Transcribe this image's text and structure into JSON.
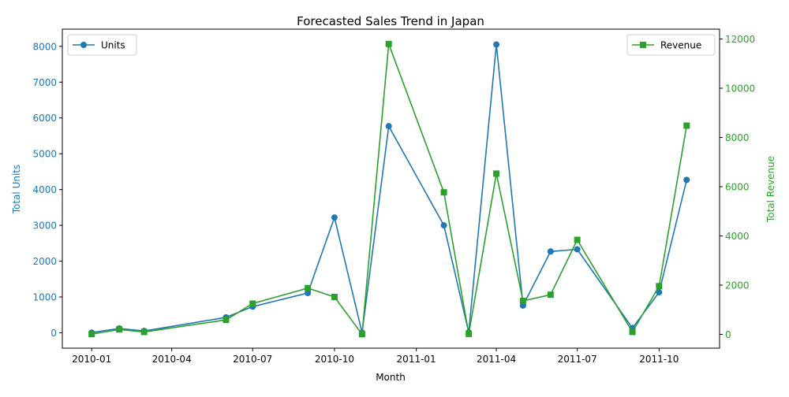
{
  "chart_data": {
    "type": "line",
    "title": "Forecasted Sales Trend in Japan",
    "xlabel": "Month",
    "x_ticks": [
      "2010-01",
      "2010-04",
      "2010-07",
      "2010-10",
      "2011-01",
      "2011-04",
      "2011-07",
      "2011-10"
    ],
    "x_range": [
      "2009-11-29",
      "2011-12-08"
    ],
    "x": [
      "2010-01-01",
      "2010-02-01",
      "2010-03-01",
      "2010-06-01",
      "2010-07-01",
      "2010-09-01",
      "2010-10-01",
      "2010-11-01",
      "2010-12-01",
      "2011-02-01",
      "2011-03-01",
      "2011-04-01",
      "2011-05-01",
      "2011-06-01",
      "2011-07-01",
      "2011-09-01",
      "2011-10-01",
      "2011-11-01"
    ],
    "y_left": {
      "label": "Total Units",
      "color": "#1f77b4",
      "ticks": [
        0,
        1000,
        2000,
        3000,
        4000,
        5000,
        6000,
        7000,
        8000
      ],
      "range": [
        -430,
        8480
      ]
    },
    "y_right": {
      "label": "Total Revenue",
      "color": "#2ca02c",
      "ticks": [
        0,
        2000,
        4000,
        6000,
        8000,
        10000,
        12000
      ],
      "range": [
        -560,
        12400
      ]
    },
    "series": [
      {
        "name": "Units",
        "axis": "left",
        "marker": "circle",
        "color": "#1f77b4",
        "legend_position": "top-left",
        "values": [
          5,
          120,
          50,
          430,
          730,
          1110,
          3220,
          5,
          5770,
          3000,
          10,
          8050,
          760,
          2270,
          2330,
          130,
          1130,
          4270
        ]
      },
      {
        "name": "Revenue",
        "axis": "right",
        "marker": "square",
        "color": "#2ca02c",
        "legend_position": "top-right",
        "values": [
          10,
          200,
          100,
          590,
          1250,
          1880,
          1520,
          5,
          11800,
          5770,
          20,
          6530,
          1360,
          1610,
          3840,
          100,
          1960,
          8480
        ]
      }
    ],
    "grid": false
  }
}
